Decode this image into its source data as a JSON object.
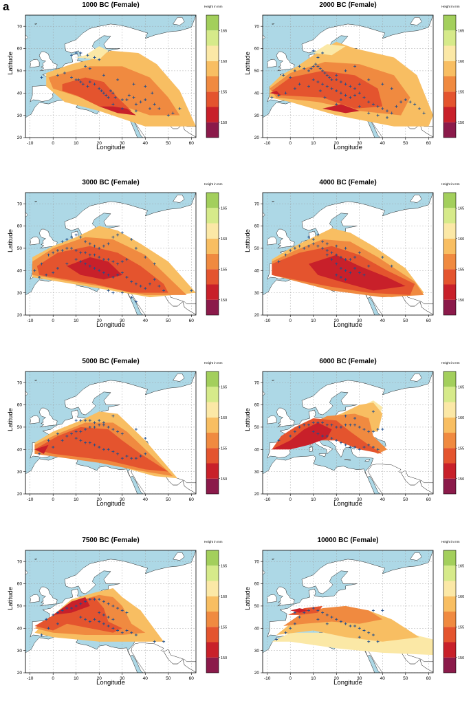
{
  "figure": {
    "panel_label": "a",
    "x_axis_label": "Longitude",
    "y_axis_label": "Latitude",
    "legend_title": "Height in mm",
    "x_ticks": [
      "-10",
      "0",
      "10",
      "20",
      "30",
      "40",
      "50",
      "60"
    ],
    "y_ticks": [
      "20",
      "30",
      "40",
      "50",
      "60",
      "70"
    ],
    "legend_ticks": [
      "1500",
      "1550",
      "1600",
      "1650",
      "1700"
    ],
    "legend_colors": [
      "#8b1a4a",
      "#c8202a",
      "#e4542e",
      "#f08a40",
      "#f8be62",
      "#fbe8a6",
      "#d6ea8a",
      "#a3cf5c"
    ],
    "ocean_color": "#add8e6",
    "land_color": "#ffffff"
  },
  "panels": [
    {
      "title": "1000 BC (Female)"
    },
    {
      "title": "2000 BC (Female)"
    },
    {
      "title": "3000 BC (Female)"
    },
    {
      "title": "4000 BC (Female)"
    },
    {
      "title": "5000 BC (Female)"
    },
    {
      "title": "6000 BC (Female)"
    },
    {
      "title": "7500 BC (Female)"
    },
    {
      "title": "10000 BC (Female)"
    }
  ]
}
